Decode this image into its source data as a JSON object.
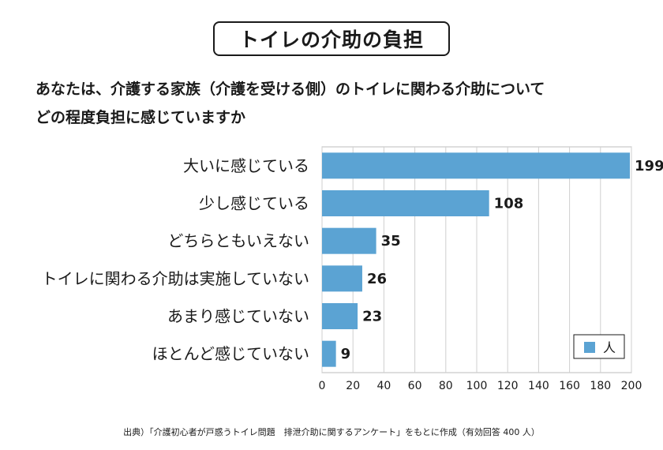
{
  "title": "トイレの介助の負担",
  "question": {
    "line1": "あなたは、介護する家族（介護を受ける側）のトイレに関わる介助について",
    "line2": "どの程度負担に感じていますか"
  },
  "chart_data": {
    "type": "bar",
    "orientation": "horizontal",
    "categories": [
      "大いに感じている",
      "少し感じている",
      "どちらともいえない",
      "トイレに関わる介助は実施していない",
      "あまり感じていない",
      "ほとんど感じていない"
    ],
    "series": [
      {
        "name": "人",
        "values": [
          199,
          108,
          35,
          26,
          23,
          9
        ],
        "color": "#5ba3d3"
      }
    ],
    "xlim": [
      0,
      200
    ],
    "xticks": [
      0,
      20,
      40,
      60,
      80,
      100,
      120,
      140,
      160,
      180,
      200
    ],
    "grid": true,
    "legend": "bottom-right"
  },
  "source": "出典）「介護初心者が戸惑うトイレ問題　排泄介助に関するアンケート」をもとに作成（有効回答 400 人）"
}
